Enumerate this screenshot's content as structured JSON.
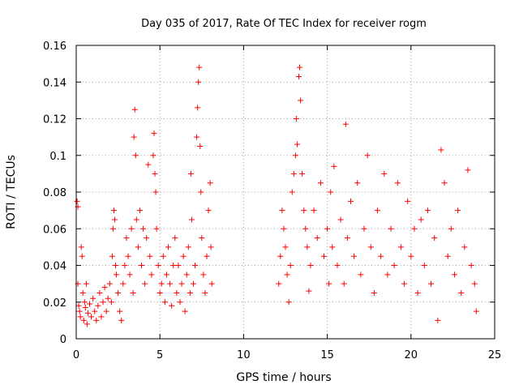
{
  "chart_data": {
    "type": "scatter",
    "title": "Day 035 of 2017, Rate Of TEC Index for receiver rogm",
    "xlabel": "GPS time / hours",
    "ylabel": "ROTI / TECUs",
    "xlim": [
      0,
      25
    ],
    "ylim": [
      0,
      0.16
    ],
    "xticks": [
      0,
      5,
      10,
      15,
      20,
      25
    ],
    "xtick_labels": [
      "0",
      "5",
      "10",
      "15",
      "20",
      "25"
    ],
    "yticks": [
      0,
      0.02,
      0.04,
      0.06,
      0.08,
      0.1,
      0.12,
      0.14,
      0.16
    ],
    "ytick_labels": [
      "0",
      "0.02",
      "0.04",
      "0.06",
      "0.08",
      "0.1",
      "0.12",
      "0.14",
      "0.16"
    ],
    "grid": true,
    "marker": "plus",
    "series_color": "#ff0000",
    "series": [
      {
        "points": [
          [
            0.05,
            0.075
          ],
          [
            0.1,
            0.072
          ],
          [
            0.1,
            0.03
          ],
          [
            0.15,
            0.018
          ],
          [
            0.2,
            0.015
          ],
          [
            0.25,
            0.012
          ],
          [
            0.3,
            0.05
          ],
          [
            0.35,
            0.045
          ],
          [
            0.4,
            0.025
          ],
          [
            0.45,
            0.01
          ],
          [
            0.5,
            0.02
          ],
          [
            0.55,
            0.017
          ],
          [
            0.6,
            0.03
          ],
          [
            0.65,
            0.008
          ],
          [
            0.7,
            0.014
          ],
          [
            0.8,
            0.019
          ],
          [
            0.9,
            0.012
          ],
          [
            1.0,
            0.022
          ],
          [
            1.1,
            0.015
          ],
          [
            1.2,
            0.01
          ],
          [
            1.3,
            0.018
          ],
          [
            1.4,
            0.025
          ],
          [
            1.5,
            0.012
          ],
          [
            1.6,
            0.02
          ],
          [
            1.7,
            0.028
          ],
          [
            1.8,
            0.015
          ],
          [
            1.9,
            0.022
          ],
          [
            2.0,
            0.03
          ],
          [
            2.1,
            0.02
          ],
          [
            2.15,
            0.045
          ],
          [
            2.2,
            0.06
          ],
          [
            2.25,
            0.07
          ],
          [
            2.3,
            0.065
          ],
          [
            2.35,
            0.04
          ],
          [
            2.4,
            0.035
          ],
          [
            2.5,
            0.025
          ],
          [
            2.6,
            0.015
          ],
          [
            2.7,
            0.01
          ],
          [
            2.8,
            0.03
          ],
          [
            2.9,
            0.04
          ],
          [
            3.0,
            0.055
          ],
          [
            3.1,
            0.045
          ],
          [
            3.2,
            0.035
          ],
          [
            3.3,
            0.06
          ],
          [
            3.4,
            0.025
          ],
          [
            3.45,
            0.11
          ],
          [
            3.5,
            0.125
          ],
          [
            3.55,
            0.1
          ],
          [
            3.6,
            0.065
          ],
          [
            3.7,
            0.05
          ],
          [
            3.8,
            0.07
          ],
          [
            3.9,
            0.04
          ],
          [
            4.0,
            0.06
          ],
          [
            4.1,
            0.03
          ],
          [
            4.2,
            0.055
          ],
          [
            4.3,
            0.095
          ],
          [
            4.4,
            0.045
          ],
          [
            4.5,
            0.035
          ],
          [
            4.6,
            0.1
          ],
          [
            4.65,
            0.112
          ],
          [
            4.7,
            0.09
          ],
          [
            4.75,
            0.08
          ],
          [
            4.8,
            0.06
          ],
          [
            4.9,
            0.04
          ],
          [
            5.0,
            0.025
          ],
          [
            5.1,
            0.03
          ],
          [
            5.2,
            0.045
          ],
          [
            5.3,
            0.02
          ],
          [
            5.4,
            0.035
          ],
          [
            5.5,
            0.05
          ],
          [
            5.6,
            0.03
          ],
          [
            5.7,
            0.018
          ],
          [
            5.8,
            0.04
          ],
          [
            5.9,
            0.055
          ],
          [
            6.0,
            0.025
          ],
          [
            6.1,
            0.04
          ],
          [
            6.2,
            0.02
          ],
          [
            6.3,
            0.03
          ],
          [
            6.4,
            0.045
          ],
          [
            6.5,
            0.015
          ],
          [
            6.6,
            0.035
          ],
          [
            6.7,
            0.05
          ],
          [
            6.8,
            0.025
          ],
          [
            6.85,
            0.09
          ],
          [
            6.9,
            0.065
          ],
          [
            7.0,
            0.03
          ],
          [
            7.1,
            0.04
          ],
          [
            7.2,
            0.11
          ],
          [
            7.25,
            0.126
          ],
          [
            7.3,
            0.14
          ],
          [
            7.35,
            0.148
          ],
          [
            7.4,
            0.105
          ],
          [
            7.45,
            0.08
          ],
          [
            7.5,
            0.055
          ],
          [
            7.6,
            0.035
          ],
          [
            7.7,
            0.025
          ],
          [
            7.8,
            0.045
          ],
          [
            7.9,
            0.07
          ],
          [
            8.0,
            0.085
          ],
          [
            8.05,
            0.05
          ],
          [
            8.1,
            0.03
          ],
          [
            12.1,
            0.03
          ],
          [
            12.2,
            0.045
          ],
          [
            12.3,
            0.07
          ],
          [
            12.4,
            0.06
          ],
          [
            12.5,
            0.05
          ],
          [
            12.6,
            0.035
          ],
          [
            12.7,
            0.02
          ],
          [
            12.8,
            0.04
          ],
          [
            12.9,
            0.08
          ],
          [
            13.0,
            0.09
          ],
          [
            13.1,
            0.1
          ],
          [
            13.15,
            0.12
          ],
          [
            13.2,
            0.106
          ],
          [
            13.3,
            0.143
          ],
          [
            13.35,
            0.148
          ],
          [
            13.4,
            0.13
          ],
          [
            13.5,
            0.09
          ],
          [
            13.6,
            0.07
          ],
          [
            13.7,
            0.06
          ],
          [
            13.8,
            0.05
          ],
          [
            13.9,
            0.026
          ],
          [
            14.0,
            0.04
          ],
          [
            14.2,
            0.07
          ],
          [
            14.4,
            0.055
          ],
          [
            14.6,
            0.085
          ],
          [
            14.8,
            0.045
          ],
          [
            15.0,
            0.06
          ],
          [
            15.1,
            0.03
          ],
          [
            15.2,
            0.08
          ],
          [
            15.3,
            0.05
          ],
          [
            15.4,
            0.094
          ],
          [
            15.6,
            0.04
          ],
          [
            15.8,
            0.065
          ],
          [
            16.0,
            0.03
          ],
          [
            16.1,
            0.117
          ],
          [
            16.2,
            0.055
          ],
          [
            16.4,
            0.075
          ],
          [
            16.6,
            0.045
          ],
          [
            16.8,
            0.085
          ],
          [
            17.0,
            0.035
          ],
          [
            17.2,
            0.06
          ],
          [
            17.4,
            0.1
          ],
          [
            17.6,
            0.05
          ],
          [
            17.8,
            0.025
          ],
          [
            18.0,
            0.07
          ],
          [
            18.2,
            0.045
          ],
          [
            18.4,
            0.09
          ],
          [
            18.6,
            0.035
          ],
          [
            18.8,
            0.06
          ],
          [
            19.0,
            0.04
          ],
          [
            19.2,
            0.085
          ],
          [
            19.4,
            0.05
          ],
          [
            19.6,
            0.03
          ],
          [
            19.8,
            0.075
          ],
          [
            20.0,
            0.045
          ],
          [
            20.2,
            0.06
          ],
          [
            20.4,
            0.025
          ],
          [
            20.6,
            0.065
          ],
          [
            20.8,
            0.04
          ],
          [
            21.0,
            0.07
          ],
          [
            21.2,
            0.03
          ],
          [
            21.4,
            0.055
          ],
          [
            21.6,
            0.01
          ],
          [
            21.8,
            0.103
          ],
          [
            22.0,
            0.085
          ],
          [
            22.2,
            0.045
          ],
          [
            22.4,
            0.06
          ],
          [
            22.6,
            0.035
          ],
          [
            22.8,
            0.07
          ],
          [
            23.0,
            0.025
          ],
          [
            23.2,
            0.05
          ],
          [
            23.4,
            0.092
          ],
          [
            23.6,
            0.04
          ],
          [
            23.8,
            0.03
          ],
          [
            23.9,
            0.015
          ]
        ]
      }
    ]
  }
}
